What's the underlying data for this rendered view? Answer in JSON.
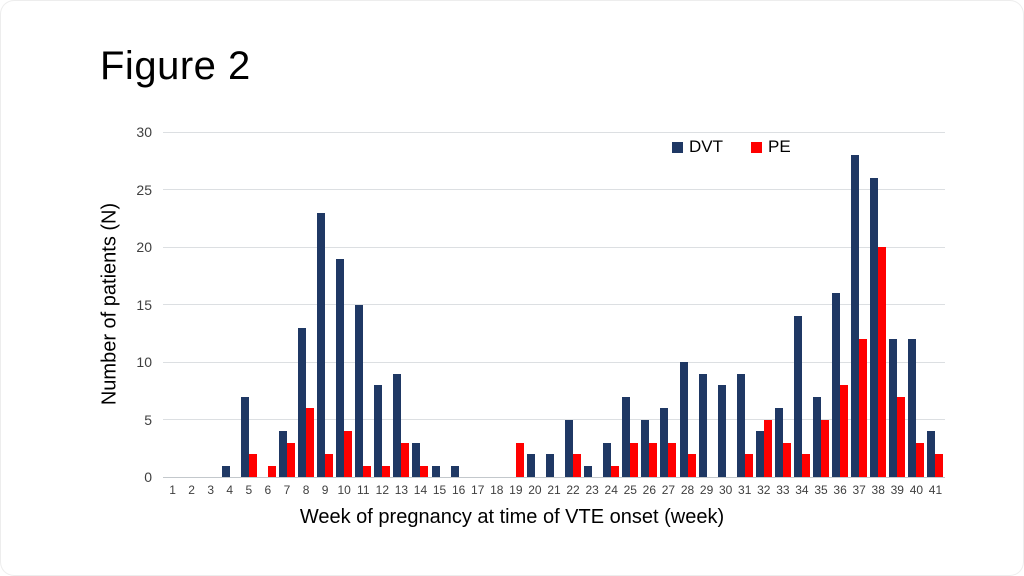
{
  "slide": {
    "title": "Figure 2"
  },
  "chart_data": {
    "type": "bar",
    "title": "Figure 2",
    "xlabel": "Week of pregnancy at time of VTE onset (week)",
    "ylabel": "Number of patients (N)",
    "ylim": [
      0,
      30
    ],
    "yticks": [
      0,
      5,
      10,
      15,
      20,
      25,
      30
    ],
    "grid": true,
    "legend_position": "top-right-inside",
    "categories": [
      1,
      2,
      3,
      4,
      5,
      6,
      7,
      8,
      9,
      10,
      11,
      12,
      13,
      14,
      15,
      16,
      17,
      18,
      19,
      20,
      21,
      22,
      23,
      24,
      25,
      26,
      27,
      28,
      29,
      30,
      31,
      32,
      33,
      34,
      35,
      36,
      37,
      38,
      39,
      40,
      41
    ],
    "series": [
      {
        "name": "DVT",
        "color": "#1F3864",
        "values": [
          0,
          0,
          0,
          1,
          7,
          0,
          4,
          13,
          23,
          19,
          15,
          8,
          9,
          3,
          1,
          1,
          0,
          0,
          0,
          2,
          2,
          5,
          1,
          3,
          7,
          5,
          6,
          10,
          9,
          8,
          9,
          4,
          6,
          14,
          7,
          16,
          28,
          26,
          12,
          12,
          4
        ]
      },
      {
        "name": "PE",
        "color": "#FF0000",
        "values": [
          0,
          0,
          0,
          0,
          2,
          1,
          3,
          6,
          2,
          4,
          1,
          1,
          3,
          1,
          0,
          0,
          0,
          0,
          3,
          0,
          0,
          2,
          0,
          1,
          3,
          3,
          3,
          2,
          0,
          0,
          2,
          5,
          3,
          2,
          5,
          8,
          12,
          20,
          7,
          3,
          2
        ]
      }
    ]
  },
  "colors": {
    "background": "#ffffff",
    "gridline": "#dcdfe2",
    "axis_line": "#c3c8cc",
    "tick_text": "#3f3f3f",
    "text": "#000000"
  }
}
